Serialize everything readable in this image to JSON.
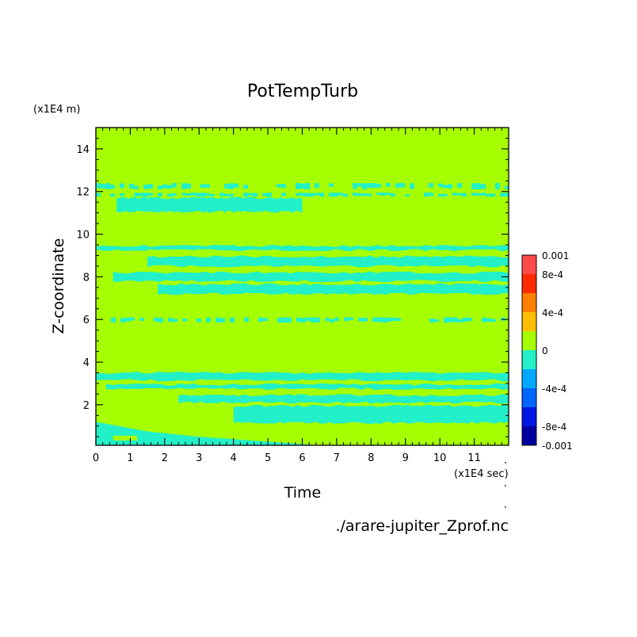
{
  "chart_data": {
    "type": "heatmap",
    "title": "PotTempTurb",
    "xlabel": "Time",
    "ylabel": "Z-coordinate",
    "x_unit_label": "(x1E4 sec)",
    "y_unit_label": "(x1E4 m)",
    "source_label": "./arare-jupiter_Zprof.nc",
    "xlim": [
      0,
      12
    ],
    "ylim": [
      0.1,
      15
    ],
    "x_ticks": [
      "0",
      "1",
      "2",
      "3",
      "4",
      "5",
      "6",
      "7",
      "8",
      "9",
      "10",
      "11"
    ],
    "y_ticks": [
      "2",
      "4",
      "6",
      "8",
      "10",
      "12",
      "14"
    ],
    "colorbar": {
      "labels": [
        "0.001",
        "8e-4",
        "4e-4",
        "0",
        "-4e-4",
        "-8e-4",
        "-0.001"
      ],
      "levels": [
        0.001,
        0.0008,
        0.0006,
        0.0004,
        0.0002,
        0,
        -0.0002,
        -0.0004,
        -0.0006,
        -0.0008,
        -0.001
      ],
      "colors": [
        "#ff4a4a",
        "#ff2a00",
        "#ff7f00",
        "#ffbf00",
        "#a6ff00",
        "#22f0c8",
        "#00a8ff",
        "#0066ff",
        "#0018e6",
        "#0000a0"
      ]
    },
    "background_value_color": "#a6ff00",
    "negative_band_color": "#22f0c8",
    "bands": [
      {
        "x": [
          0,
          12
        ],
        "z": [
          12.1,
          12.4
        ],
        "pattern": "speckle"
      },
      {
        "x": [
          0,
          12
        ],
        "z": [
          11.75,
          11.95
        ],
        "pattern": "speckle"
      },
      {
        "x": [
          0.6,
          6
        ],
        "z": [
          11.05,
          11.7
        ]
      },
      {
        "x": [
          0,
          12
        ],
        "z": [
          9.25,
          9.45
        ]
      },
      {
        "x": [
          1.5,
          12
        ],
        "z": [
          8.5,
          8.95
        ]
      },
      {
        "x": [
          0.5,
          12
        ],
        "z": [
          7.8,
          8.2
        ]
      },
      {
        "x": [
          1.8,
          12
        ],
        "z": [
          7.2,
          7.65
        ]
      },
      {
        "x": [
          0.3,
          12
        ],
        "z": [
          5.85,
          6.1
        ],
        "pattern": "speckle"
      },
      {
        "x": [
          0,
          12
        ],
        "z": [
          3.15,
          3.5
        ]
      },
      {
        "x": [
          0.3,
          12
        ],
        "z": [
          2.75,
          2.95
        ]
      },
      {
        "x": [
          2.4,
          12
        ],
        "z": [
          2.1,
          2.45
        ]
      },
      {
        "x": [
          4,
          12
        ],
        "z": [
          1.15,
          1.95
        ]
      },
      {
        "x": [
          0,
          6.5
        ],
        "z": [
          0.1,
          1.0
        ],
        "pattern": "wedge"
      }
    ]
  }
}
